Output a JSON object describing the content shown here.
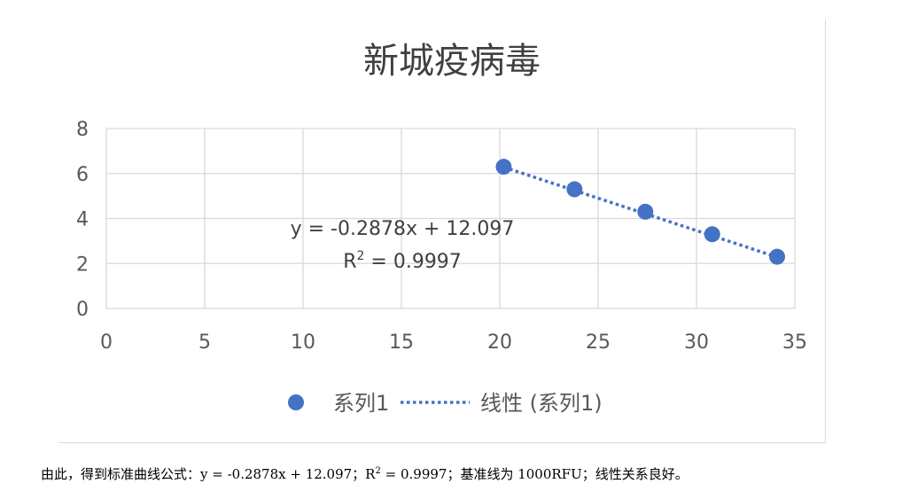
{
  "chart_data": {
    "type": "scatter",
    "title": "新城疫病毒",
    "xlim": [
      0,
      35
    ],
    "ylim": [
      0,
      8
    ],
    "x_ticks": [
      "0",
      "5",
      "10",
      "15",
      "20",
      "25",
      "30",
      "35"
    ],
    "y_ticks": [
      "0",
      "2",
      "4",
      "6",
      "8"
    ],
    "grid": true,
    "series": [
      {
        "name": "系列1",
        "color": "#4472c4",
        "x": [
          20.2,
          23.8,
          27.4,
          30.8,
          34.1
        ],
        "y": [
          6.3,
          5.3,
          4.3,
          3.3,
          2.3
        ]
      }
    ],
    "trendline": {
      "name": "线性 (系列1)",
      "style": "dotted",
      "color": "#4472c4",
      "slope": -0.2878,
      "intercept": 12.097,
      "x_range": [
        20.2,
        34.1
      ],
      "equation": "y = -0.2878x + 12.097",
      "r2_prefix": "R",
      "r2_sup": "2",
      "r2_value": " = 0.9997"
    },
    "legend": {
      "position": "bottom",
      "marker_label": "系列1",
      "line_label": "线性 (系列1)"
    }
  },
  "caption": {
    "text_before": "由此，得到标准曲线公式：y = -0.2878x + 12.097；R",
    "sup": "2",
    "text_after": " = 0.9997；基准线为 1000RFU；线性关系良好。"
  }
}
